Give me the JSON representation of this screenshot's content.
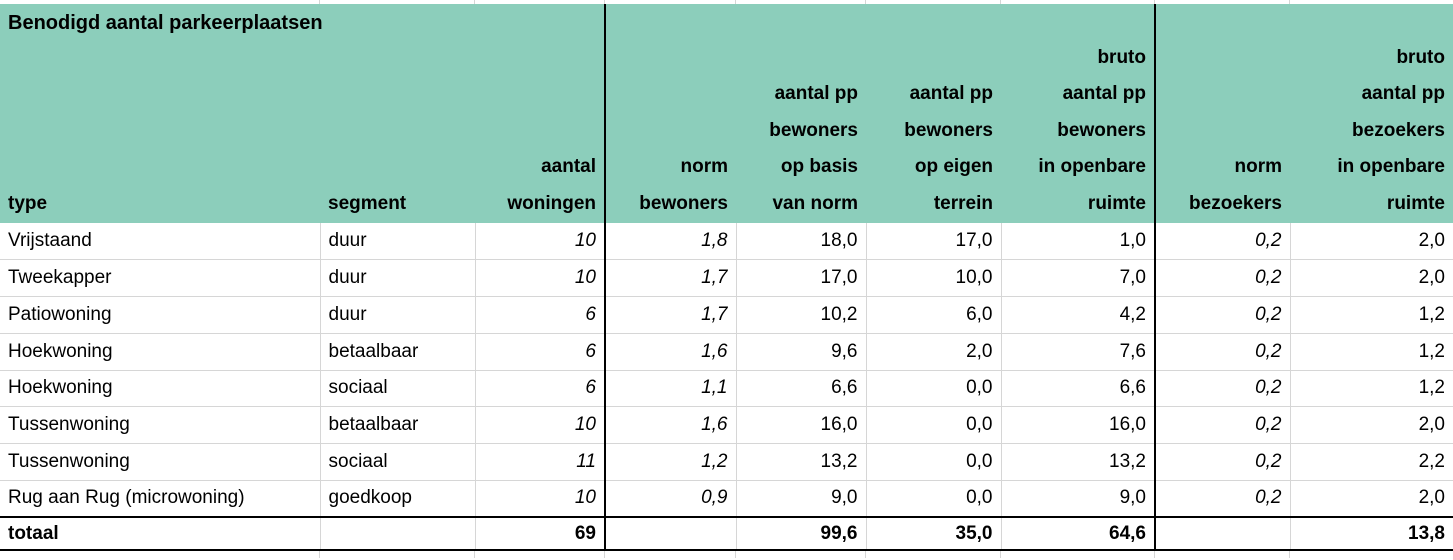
{
  "table": {
    "title": "Benodigd aantal parkeerplaatsen",
    "columns": [
      {
        "id": "type",
        "label": "type"
      },
      {
        "id": "segment",
        "label": "segment"
      },
      {
        "id": "aantal-woningen",
        "label": "aantal\nwoningen"
      },
      {
        "id": "norm-bewoners",
        "label": "norm\nbewoners"
      },
      {
        "id": "aantal-pp-bewoners-op-basis-van-norm",
        "label": "aantal pp\nbewoners\nop basis\nvan norm"
      },
      {
        "id": "aantal-pp-bewoners-op-eigen-terrein",
        "label": "aantal pp\nbewoners\nop eigen\nterrein"
      },
      {
        "id": "bruto-aantal-pp-bewoners-in-openbare-ruimte",
        "label": "bruto\naantal pp\nbewoners\nin openbare\nruimte"
      },
      {
        "id": "norm-bezoekers",
        "label": "norm\nbezoekers"
      },
      {
        "id": "bruto-aantal-pp-bezoekers-in-openbare-ruimte",
        "label": "bruto\naantal pp\nbezoekers\nin openbare\nruimte"
      }
    ],
    "rows": [
      [
        "Vrijstaand",
        "duur",
        "10",
        "1,8",
        "18,0",
        "17,0",
        "1,0",
        "0,2",
        "2,0"
      ],
      [
        "Tweekapper",
        "duur",
        "10",
        "1,7",
        "17,0",
        "10,0",
        "7,0",
        "0,2",
        "2,0"
      ],
      [
        "Patiowoning",
        "duur",
        "6",
        "1,7",
        "10,2",
        "6,0",
        "4,2",
        "0,2",
        "1,2"
      ],
      [
        "Hoekwoning",
        "betaalbaar",
        "6",
        "1,6",
        "9,6",
        "2,0",
        "7,6",
        "0,2",
        "1,2"
      ],
      [
        "Hoekwoning",
        "sociaal",
        "6",
        "1,1",
        "6,6",
        "0,0",
        "6,6",
        "0,2",
        "1,2"
      ],
      [
        "Tussenwoning",
        "betaalbaar",
        "10",
        "1,6",
        "16,0",
        "0,0",
        "16,0",
        "0,2",
        "2,0"
      ],
      [
        "Tussenwoning",
        "sociaal",
        "11",
        "1,2",
        "13,2",
        "0,0",
        "13,2",
        "0,2",
        "2,2"
      ],
      [
        "Rug aan Rug (microwoning)",
        "goedkoop",
        "10",
        "0,9",
        "9,0",
        "0,0",
        "9,0",
        "0,2",
        "2,0"
      ]
    ],
    "total_row": [
      "totaal",
      "",
      "69",
      "",
      "99,6",
      "35,0",
      "64,6",
      "",
      "13,8"
    ]
  },
  "colors": {
    "header_fill": "#8CCEBB",
    "gridline": "#D6D6D6",
    "separator": "#000000",
    "text": "#000000",
    "background": "#FFFFFF"
  }
}
